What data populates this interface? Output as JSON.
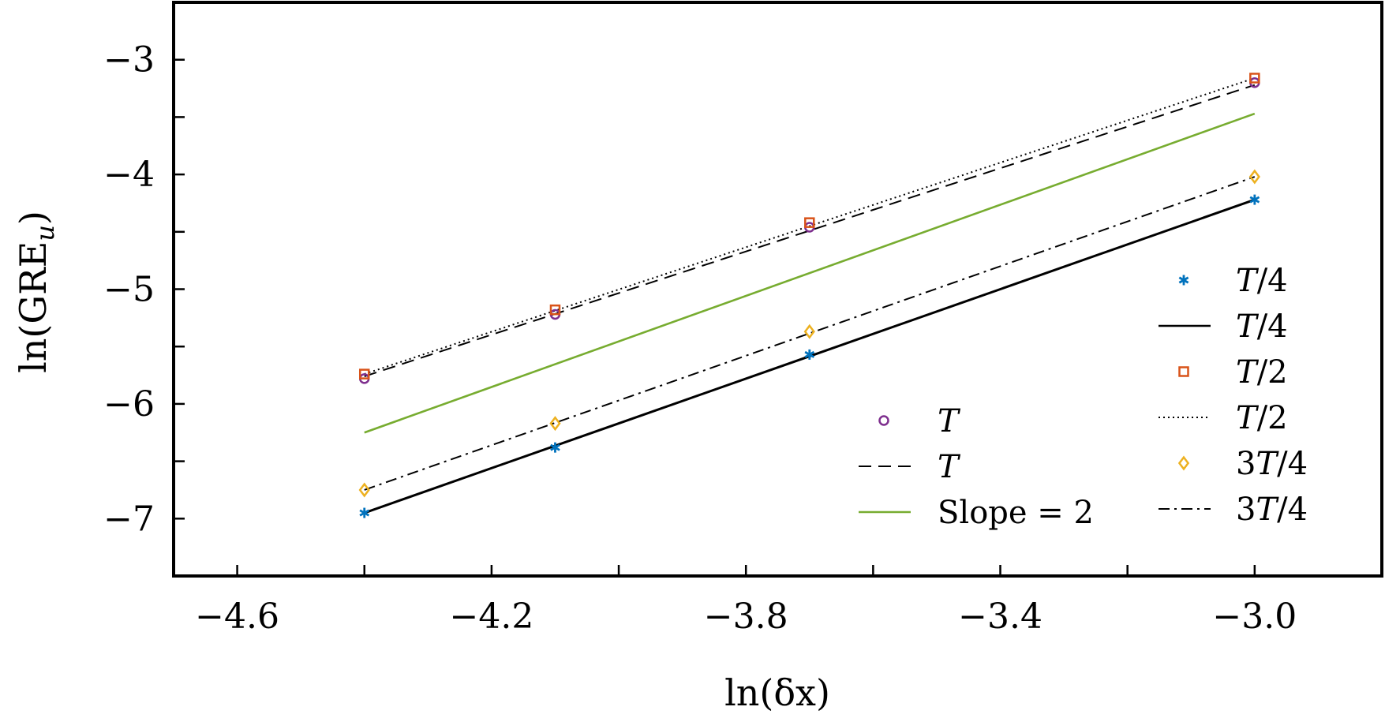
{
  "chart_data": {
    "type": "line",
    "xlabel": "ln(δx)",
    "ylabel": "ln(GRE",
    "ylabel_sub": "u",
    "ylabel_close": ")",
    "xlim": [
      -4.7,
      -2.8
    ],
    "ylim": [
      -7.5,
      -2.5
    ],
    "xticks": [
      -4.6,
      -4.4,
      -4.2,
      -4.0,
      -3.8,
      -3.6,
      -3.4,
      -3.2,
      -3.0
    ],
    "xtick_labels": [
      "−4.6",
      "",
      "−4.2",
      "",
      "−3.8",
      "",
      "−3.4",
      "",
      "−3.0"
    ],
    "yticks": [
      -7,
      -6.5,
      -6,
      -5.5,
      -5,
      -4.5,
      -4,
      -3.5,
      -3
    ],
    "ytick_labels": [
      "−7",
      "",
      "−6",
      "",
      "−5",
      "",
      "−4",
      "",
      "−3"
    ],
    "grid": false,
    "x": [
      -4.4,
      -4.1,
      -3.7,
      -3.0
    ],
    "series": [
      {
        "label": "T",
        "marker": "circle",
        "color": "#7e2f8e",
        "values": [
          -5.78,
          -5.22,
          -4.46,
          -3.2
        ]
      },
      {
        "label": "T",
        "line": "dashed",
        "color": "#000000",
        "x": [
          -4.4,
          -3.0
        ],
        "values": [
          -5.76,
          -3.22
        ]
      },
      {
        "label": "Slope = 2",
        "line": "solid",
        "color": "#77ac30",
        "x": [
          -4.4,
          -3.0
        ],
        "values": [
          -6.25,
          -3.47
        ]
      },
      {
        "label": "T/4",
        "marker": "asterisk",
        "color": "#0072bd",
        "values": [
          -6.95,
          -6.38,
          -5.57,
          -4.22
        ]
      },
      {
        "label": "T/4",
        "line": "solid",
        "color": "#000000",
        "x": [
          -4.4,
          -3.0
        ],
        "values": [
          -6.95,
          -4.22
        ]
      },
      {
        "label": "T/2",
        "marker": "square",
        "color": "#d95319",
        "values": [
          -5.74,
          -5.18,
          -4.42,
          -3.16
        ]
      },
      {
        "label": "T/2",
        "line": "dotted",
        "color": "#000000",
        "x": [
          -4.4,
          -3.0
        ],
        "values": [
          -5.74,
          -3.16
        ]
      },
      {
        "label": "3T/4",
        "marker": "diamond",
        "color": "#edb120",
        "values": [
          -6.75,
          -6.17,
          -5.37,
          -4.02
        ]
      },
      {
        "label": "3T/4",
        "line": "dashdot",
        "color": "#000000",
        "x": [
          -4.4,
          -3.0
        ],
        "values": [
          -6.75,
          -4.02
        ]
      }
    ],
    "legend": {
      "placement": "lower-right",
      "left_column": [
        {
          "kind": "marker",
          "marker": "circle",
          "color": "#7e2f8e",
          "parts": [
            {
              "t": "T",
              "i": true
            }
          ]
        },
        {
          "kind": "line",
          "line": "dashed",
          "color": "#000000",
          "parts": [
            {
              "t": "T",
              "i": true
            }
          ]
        },
        {
          "kind": "line",
          "line": "solid",
          "color": "#77ac30",
          "parts": [
            {
              "t": "Slope = 2",
              "i": false
            }
          ]
        }
      ],
      "right_column": [
        {
          "kind": "marker",
          "marker": "asterisk",
          "color": "#0072bd",
          "parts": [
            {
              "t": "T",
              "i": true
            },
            {
              "t": "/4",
              "i": false
            }
          ]
        },
        {
          "kind": "line",
          "line": "solid",
          "color": "#000000",
          "parts": [
            {
              "t": "T",
              "i": true
            },
            {
              "t": "/4",
              "i": false
            }
          ]
        },
        {
          "kind": "marker",
          "marker": "square",
          "color": "#d95319",
          "parts": [
            {
              "t": "T",
              "i": true
            },
            {
              "t": "/2",
              "i": false
            }
          ]
        },
        {
          "kind": "line",
          "line": "dotted",
          "color": "#000000",
          "parts": [
            {
              "t": "T",
              "i": true
            },
            {
              "t": "/2",
              "i": false
            }
          ]
        },
        {
          "kind": "marker",
          "marker": "diamond",
          "color": "#edb120",
          "parts": [
            {
              "t": "3",
              "i": false
            },
            {
              "t": "T",
              "i": true
            },
            {
              "t": "/4",
              "i": false
            }
          ]
        },
        {
          "kind": "line",
          "line": "dashdot",
          "color": "#000000",
          "parts": [
            {
              "t": "3",
              "i": false
            },
            {
              "t": "T",
              "i": true
            },
            {
              "t": "/4",
              "i": false
            }
          ]
        }
      ]
    }
  }
}
